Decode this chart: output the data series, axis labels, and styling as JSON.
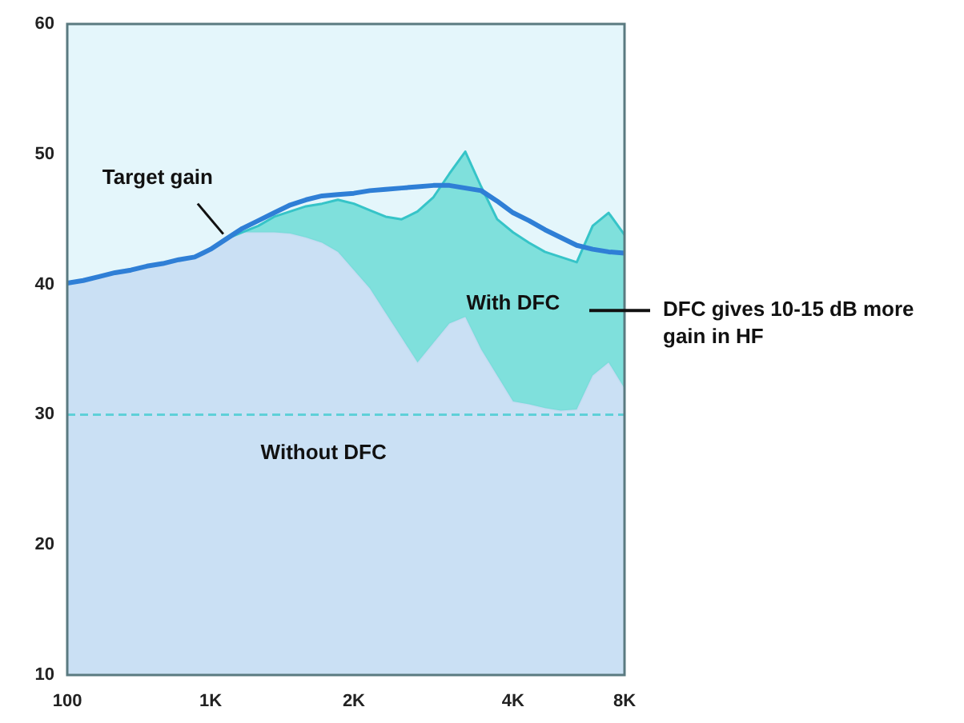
{
  "chart_data": {
    "type": "area",
    "categories": [
      "100",
      null,
      null,
      null,
      null,
      null,
      null,
      null,
      null,
      "1K",
      null,
      null,
      null,
      null,
      null,
      null,
      null,
      null,
      "2K",
      null,
      null,
      null,
      null,
      null,
      null,
      null,
      null,
      null,
      "4K",
      null,
      null,
      null,
      null,
      null,
      null,
      "8K"
    ],
    "series": [
      {
        "name": "Without DFC",
        "color": "#c6dcf2",
        "values": [
          40.1,
          40.3,
          40.6,
          40.9,
          41.1,
          41.4,
          41.6,
          41.9,
          42.1,
          42.7,
          43.5,
          44.0,
          44.0,
          44.0,
          43.9,
          43.6,
          43.2,
          42.5,
          41.1,
          39.7,
          37.8,
          35.9,
          34.0,
          35.5,
          37.0,
          37.5,
          35.0,
          33.0,
          31.0,
          30.8,
          30.5,
          30.3,
          30.4,
          33.0,
          34.0,
          32.0
        ]
      },
      {
        "name": "With DFC",
        "color": "#6ddcd6",
        "values": [
          40.1,
          40.3,
          40.6,
          40.9,
          41.1,
          41.4,
          41.6,
          41.9,
          42.1,
          42.7,
          43.5,
          44.0,
          44.5,
          45.2,
          45.6,
          46.0,
          46.2,
          46.5,
          46.2,
          45.7,
          45.2,
          45.0,
          45.6,
          46.7,
          48.5,
          50.2,
          47.5,
          45.0,
          44.0,
          43.2,
          42.5,
          42.1,
          41.7,
          44.5,
          45.5,
          43.8
        ]
      },
      {
        "name": "Target gain",
        "type": "line",
        "color": "#2f7fd6",
        "values": [
          40.1,
          40.3,
          40.6,
          40.9,
          41.1,
          41.4,
          41.6,
          41.9,
          42.1,
          42.7,
          43.5,
          44.3,
          44.9,
          45.5,
          46.1,
          46.5,
          46.8,
          46.9,
          47.0,
          47.2,
          47.3,
          47.4,
          47.5,
          47.6,
          47.6,
          47.4,
          47.2,
          46.4,
          45.5,
          44.9,
          44.2,
          43.6,
          43.0,
          42.7,
          42.5,
          42.4
        ]
      }
    ],
    "ylim": [
      10,
      60
    ],
    "yticks": [
      10,
      20,
      30,
      40,
      50,
      60
    ],
    "ref_lines": [
      {
        "axis": "y",
        "value": 30,
        "color": "#5fd0d8",
        "line_style": "dashed"
      }
    ],
    "annotations": [
      "DFC gives 10-15 dB more gain in HF"
    ],
    "legend": false,
    "marker": "none"
  }
}
